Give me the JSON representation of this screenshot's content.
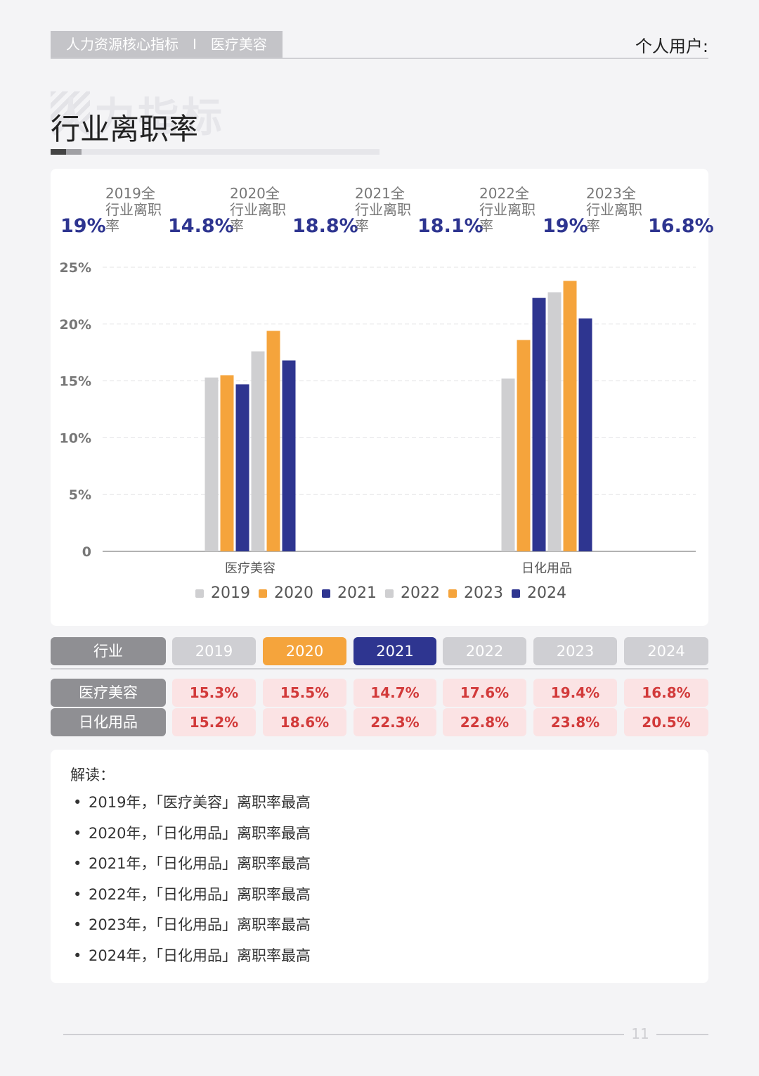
{
  "header": {
    "crumb_left": "人力资源核心指标",
    "crumb_sep": "I",
    "crumb_right": "医疗美容",
    "user": "个人用户:"
  },
  "page": {
    "title": "行业离职率",
    "title_ghost": "人力指标",
    "number": "11"
  },
  "stats": [
    {
      "value": "19%",
      "label": "2019全行业离职率"
    },
    {
      "value": "14.8%",
      "label": "2020全行业离职率"
    },
    {
      "value": "18.8%",
      "label": "2021全行业离职率"
    },
    {
      "value": "18.1%",
      "label": "2022全行业离职率"
    },
    {
      "value": "19%",
      "label": "2023全行业离职率"
    },
    {
      "value": "16.8%",
      "label": ""
    }
  ],
  "chart_data": {
    "type": "bar",
    "categories": [
      "医疗美容",
      "日化用品"
    ],
    "series": [
      {
        "name": "2019",
        "color": "#cfcfd1",
        "values": [
          15.3,
          15.2
        ]
      },
      {
        "name": "2020",
        "color": "#f5a43c",
        "values": [
          15.5,
          18.6
        ]
      },
      {
        "name": "2021",
        "color": "#2e3590",
        "values": [
          14.7,
          22.3
        ]
      },
      {
        "name": "2022",
        "color": "#cfcfd1",
        "values": [
          17.6,
          22.8
        ]
      },
      {
        "name": "2023",
        "color": "#f5a43c",
        "values": [
          19.4,
          23.8
        ]
      },
      {
        "name": "2024",
        "color": "#2e3590",
        "values": [
          16.8,
          20.5
        ]
      }
    ],
    "yticks": [
      "0",
      "5%",
      "10%",
      "15%",
      "20%",
      "25%"
    ],
    "ylim": [
      0,
      25
    ],
    "grid": true,
    "legend": "bottom"
  },
  "table": {
    "header": [
      "行业",
      "2019",
      "2020",
      "2021",
      "2022",
      "2023",
      "2024"
    ],
    "rows": [
      {
        "label": "医疗美容",
        "values": [
          "15.3%",
          "15.5%",
          "14.7%",
          "17.6%",
          "19.4%",
          "16.8%"
        ]
      },
      {
        "label": "日化用品",
        "values": [
          "15.2%",
          "18.6%",
          "22.3%",
          "22.8%",
          "23.8%",
          "20.5%"
        ]
      }
    ]
  },
  "notes": {
    "title": "解读：",
    "items": [
      "2019年，「医疗美容」离职率最高",
      "2020年，「日化用品」离职率最高",
      "2021年，「日化用品」离职率最高",
      "2022年，「日化用品」离职率最高",
      "2023年，「日化用品」离职率最高",
      "2024年，「日化用品」离职率最高"
    ]
  }
}
